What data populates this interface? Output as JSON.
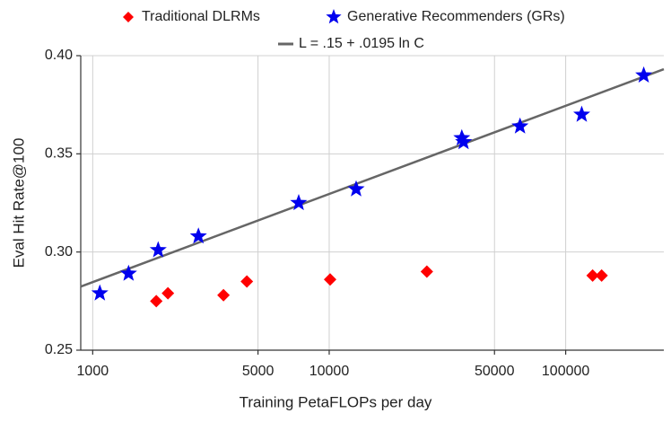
{
  "chart_data": {
    "type": "scatter",
    "x_label": "Training PetaFLOPs per day",
    "y_label": "Eval Hit Rate@100",
    "x_log": true,
    "grid": true,
    "legend_position": "top",
    "xlim": [
      890,
      260000
    ],
    "ylim": [
      0.25,
      0.4
    ],
    "xticks": [
      1000,
      5000,
      10000,
      50000,
      100000
    ],
    "yticks": [
      0.25,
      {
        "value": 0.3,
        "label": "0.30"
      },
      0.35,
      {
        "value": 0.4,
        "label": "0.40"
      }
    ],
    "series": [
      {
        "name": "Traditional DLRMs",
        "color": "#ff0000",
        "marker": "diamond",
        "x": [
          1857,
          2080,
          3573,
          4486,
          10090,
          25880,
          130000,
          141900
        ],
        "values": [
          0.275,
          0.279,
          0.278,
          0.285,
          0.286,
          0.29,
          0.288,
          0.288
        ]
      },
      {
        "name": "Generative Recommenders (GRs)",
        "color": "#0000ee",
        "marker": "star",
        "x": [
          1072,
          1418,
          1892,
          2799,
          7430,
          13000,
          36370,
          37000,
          64100,
          116900,
          213800
        ],
        "values": [
          0.279,
          0.289,
          0.301,
          0.308,
          0.325,
          0.332,
          0.358,
          0.356,
          0.364,
          0.37,
          0.39
        ]
      },
      {
        "name": "L = .15 + .0195 ln C",
        "color": "#666666",
        "marker": "line",
        "x": [
          890,
          260000
        ],
        "values": [
          0.2824,
          0.3931
        ]
      }
    ]
  }
}
